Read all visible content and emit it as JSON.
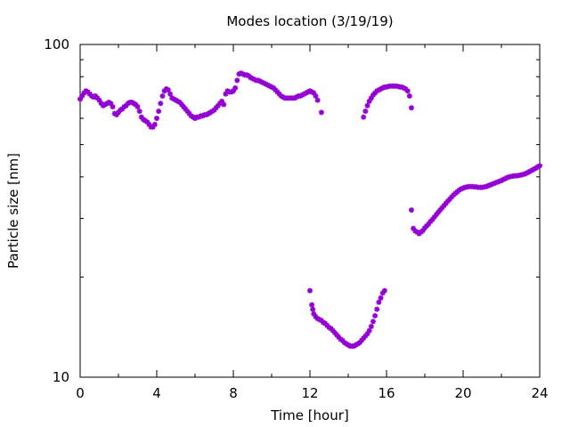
{
  "chart_data": {
    "type": "scatter",
    "title": "Modes location (3/19/19)",
    "xlabel": "Time [hour]",
    "ylabel": "Particle size [nm]",
    "xlim": [
      0,
      24
    ],
    "ylim": [
      10,
      100
    ],
    "yscale": "log",
    "grid": false,
    "x_ticks": [
      0,
      4,
      8,
      12,
      16,
      20,
      24
    ],
    "x_tick_labels": [
      "0",
      "4",
      "8",
      "12",
      "16",
      "20",
      "24"
    ],
    "y_ticks": [
      10,
      100
    ],
    "y_tick_labels": [
      "10",
      "100"
    ],
    "marker_color": "#9400D3",
    "series": [
      {
        "marker": "asterisk",
        "points": [
          [
            0.0,
            68.5
          ],
          [
            0.1,
            70.0
          ],
          [
            0.2,
            71.5
          ],
          [
            0.3,
            72.5
          ],
          [
            0.4,
            72.0
          ],
          [
            0.5,
            71.0
          ],
          [
            0.6,
            70.0
          ],
          [
            0.7,
            69.5
          ],
          [
            0.8,
            70.0
          ],
          [
            0.9,
            69.0
          ],
          [
            1.0,
            68.0
          ],
          [
            1.1,
            66.5
          ],
          [
            1.2,
            65.5
          ],
          [
            1.3,
            66.0
          ],
          [
            1.4,
            66.5
          ],
          [
            1.5,
            67.0
          ],
          [
            1.6,
            66.5
          ],
          [
            1.7,
            65.0
          ],
          [
            1.8,
            62.0
          ],
          [
            1.9,
            61.5
          ],
          [
            2.0,
            62.5
          ],
          [
            2.1,
            63.5
          ],
          [
            2.2,
            64.0
          ],
          [
            2.3,
            65.0
          ],
          [
            2.4,
            65.5
          ],
          [
            2.5,
            66.5
          ],
          [
            2.6,
            67.0
          ],
          [
            2.7,
            67.0
          ],
          [
            2.8,
            66.5
          ],
          [
            2.9,
            66.0
          ],
          [
            3.0,
            65.0
          ],
          [
            3.1,
            63.0
          ],
          [
            3.2,
            60.5
          ],
          [
            3.3,
            59.5
          ],
          [
            3.4,
            59.0
          ],
          [
            3.5,
            58.5
          ],
          [
            3.6,
            57.5
          ],
          [
            3.7,
            56.5
          ],
          [
            3.8,
            56.5
          ],
          [
            3.9,
            57.5
          ],
          [
            4.0,
            60.0
          ],
          [
            4.1,
            63.0
          ],
          [
            4.2,
            66.5
          ],
          [
            4.3,
            70.0
          ],
          [
            4.4,
            72.5
          ],
          [
            4.5,
            73.5
          ],
          [
            4.6,
            73.0
          ],
          [
            4.7,
            71.0
          ],
          [
            4.8,
            69.0
          ],
          [
            4.9,
            68.5
          ],
          [
            5.0,
            68.0
          ],
          [
            5.1,
            67.5
          ],
          [
            5.2,
            67.0
          ],
          [
            5.3,
            66.0
          ],
          [
            5.4,
            65.0
          ],
          [
            5.5,
            64.0
          ],
          [
            5.6,
            63.0
          ],
          [
            5.7,
            62.0
          ],
          [
            5.8,
            61.0
          ],
          [
            5.9,
            60.5
          ],
          [
            6.0,
            60.0
          ],
          [
            6.1,
            60.5
          ],
          [
            6.2,
            60.5
          ],
          [
            6.3,
            61.0
          ],
          [
            6.4,
            61.0
          ],
          [
            6.5,
            61.5
          ],
          [
            6.6,
            61.5
          ],
          [
            6.7,
            62.0
          ],
          [
            6.8,
            62.5
          ],
          [
            6.9,
            63.0
          ],
          [
            7.0,
            63.5
          ],
          [
            7.1,
            64.5
          ],
          [
            7.2,
            65.5
          ],
          [
            7.3,
            66.5
          ],
          [
            7.4,
            67.5
          ],
          [
            7.5,
            66.0
          ],
          [
            7.6,
            71.0
          ],
          [
            7.7,
            72.5
          ],
          [
            7.8,
            72.0
          ],
          [
            7.9,
            72.0
          ],
          [
            8.0,
            72.5
          ],
          [
            8.1,
            74.0
          ],
          [
            8.2,
            78.0
          ],
          [
            8.3,
            81.5
          ],
          [
            8.4,
            82.0
          ],
          [
            8.5,
            81.5
          ],
          [
            8.6,
            81.0
          ],
          [
            8.7,
            81.0
          ],
          [
            8.8,
            80.5
          ],
          [
            8.9,
            79.5
          ],
          [
            9.0,
            79.0
          ],
          [
            9.1,
            78.5
          ],
          [
            9.2,
            78.0
          ],
          [
            9.3,
            78.0
          ],
          [
            9.4,
            77.5
          ],
          [
            9.5,
            77.0
          ],
          [
            9.6,
            76.5
          ],
          [
            9.7,
            76.0
          ],
          [
            9.8,
            75.5
          ],
          [
            9.9,
            75.0
          ],
          [
            10.0,
            74.5
          ],
          [
            10.1,
            74.0
          ],
          [
            10.2,
            73.0
          ],
          [
            10.3,
            72.0
          ],
          [
            10.4,
            71.0
          ],
          [
            10.5,
            70.0
          ],
          [
            10.6,
            69.5
          ],
          [
            10.7,
            69.0
          ],
          [
            10.8,
            69.0
          ],
          [
            10.9,
            69.0
          ],
          [
            11.0,
            69.0
          ],
          [
            11.1,
            69.0
          ],
          [
            11.2,
            69.0
          ],
          [
            11.3,
            69.5
          ],
          [
            11.4,
            70.0
          ],
          [
            11.5,
            70.0
          ],
          [
            11.6,
            70.5
          ],
          [
            11.7,
            71.0
          ],
          [
            11.8,
            71.5
          ],
          [
            11.9,
            72.0
          ],
          [
            12.0,
            72.5
          ],
          [
            12.1,
            72.0
          ],
          [
            12.2,
            71.5
          ],
          [
            12.3,
            70.0
          ],
          [
            12.4,
            68.0
          ],
          [
            12.6,
            62.5
          ],
          [
            12.0,
            18.2
          ],
          [
            12.1,
            16.5
          ],
          [
            12.15,
            16.0
          ],
          [
            12.2,
            15.5
          ],
          [
            12.3,
            15.2
          ],
          [
            12.4,
            15.0
          ],
          [
            12.5,
            14.9
          ],
          [
            12.6,
            14.8
          ],
          [
            12.7,
            14.6
          ],
          [
            12.8,
            14.5
          ],
          [
            12.9,
            14.3
          ],
          [
            13.0,
            14.1
          ],
          [
            13.1,
            14.0
          ],
          [
            13.2,
            13.8
          ],
          [
            13.3,
            13.6
          ],
          [
            13.4,
            13.4
          ],
          [
            13.5,
            13.2
          ],
          [
            13.6,
            13.0
          ],
          [
            13.7,
            12.9
          ],
          [
            13.8,
            12.7
          ],
          [
            13.9,
            12.6
          ],
          [
            14.0,
            12.5
          ],
          [
            14.1,
            12.4
          ],
          [
            14.2,
            12.4
          ],
          [
            14.3,
            12.4
          ],
          [
            14.4,
            12.5
          ],
          [
            14.5,
            12.6
          ],
          [
            14.6,
            12.7
          ],
          [
            14.7,
            12.9
          ],
          [
            14.8,
            13.1
          ],
          [
            14.9,
            13.3
          ],
          [
            15.0,
            13.5
          ],
          [
            15.1,
            13.8
          ],
          [
            15.2,
            14.2
          ],
          [
            15.3,
            14.7
          ],
          [
            15.4,
            15.3
          ],
          [
            15.5,
            16.0
          ],
          [
            15.6,
            16.8
          ],
          [
            15.7,
            17.3
          ],
          [
            15.8,
            17.9
          ],
          [
            15.9,
            18.2
          ],
          [
            14.8,
            60.5
          ],
          [
            14.9,
            63.0
          ],
          [
            15.0,
            65.5
          ],
          [
            15.1,
            67.5
          ],
          [
            15.2,
            69.0
          ],
          [
            15.3,
            70.5
          ],
          [
            15.4,
            71.5
          ],
          [
            15.5,
            72.5
          ],
          [
            15.6,
            73.0
          ],
          [
            15.7,
            73.5
          ],
          [
            15.8,
            74.0
          ],
          [
            15.9,
            74.5
          ],
          [
            16.0,
            74.5
          ],
          [
            16.1,
            74.8
          ],
          [
            16.2,
            75.0
          ],
          [
            16.3,
            75.0
          ],
          [
            16.4,
            75.0
          ],
          [
            16.5,
            75.0
          ],
          [
            16.6,
            74.8
          ],
          [
            16.7,
            74.5
          ],
          [
            16.8,
            74.5
          ],
          [
            16.9,
            74.0
          ],
          [
            17.0,
            73.5
          ],
          [
            17.1,
            72.5
          ],
          [
            17.2,
            70.0
          ],
          [
            17.3,
            64.5
          ],
          [
            17.3,
            31.8
          ],
          [
            17.4,
            28.0
          ],
          [
            17.5,
            27.5
          ],
          [
            17.6,
            27.3
          ],
          [
            17.7,
            27.0
          ],
          [
            17.8,
            27.3
          ],
          [
            17.9,
            27.6
          ],
          [
            18.0,
            28.1
          ],
          [
            18.1,
            28.5
          ],
          [
            18.2,
            28.9
          ],
          [
            18.3,
            29.4
          ],
          [
            18.4,
            29.8
          ],
          [
            18.5,
            30.3
          ],
          [
            18.6,
            30.8
          ],
          [
            18.7,
            31.3
          ],
          [
            18.8,
            31.8
          ],
          [
            18.9,
            32.3
          ],
          [
            19.0,
            32.8
          ],
          [
            19.1,
            33.3
          ],
          [
            19.2,
            33.8
          ],
          [
            19.3,
            34.3
          ],
          [
            19.4,
            34.8
          ],
          [
            19.5,
            35.3
          ],
          [
            19.6,
            35.7
          ],
          [
            19.7,
            36.1
          ],
          [
            19.8,
            36.5
          ],
          [
            19.9,
            36.8
          ],
          [
            20.0,
            37.0
          ],
          [
            20.1,
            37.2
          ],
          [
            20.2,
            37.3
          ],
          [
            20.3,
            37.4
          ],
          [
            20.4,
            37.4
          ],
          [
            20.5,
            37.4
          ],
          [
            20.6,
            37.3
          ],
          [
            20.7,
            37.3
          ],
          [
            20.8,
            37.2
          ],
          [
            20.9,
            37.2
          ],
          [
            21.0,
            37.2
          ],
          [
            21.1,
            37.3
          ],
          [
            21.2,
            37.4
          ],
          [
            21.3,
            37.6
          ],
          [
            21.4,
            37.8
          ],
          [
            21.5,
            38.0
          ],
          [
            21.6,
            38.2
          ],
          [
            21.7,
            38.4
          ],
          [
            21.8,
            38.6
          ],
          [
            21.9,
            38.8
          ],
          [
            22.0,
            39.0
          ],
          [
            22.1,
            39.3
          ],
          [
            22.2,
            39.5
          ],
          [
            22.3,
            39.8
          ],
          [
            22.4,
            40.0
          ],
          [
            22.5,
            40.1
          ],
          [
            22.6,
            40.2
          ],
          [
            22.7,
            40.3
          ],
          [
            22.8,
            40.3
          ],
          [
            22.9,
            40.4
          ],
          [
            23.0,
            40.5
          ],
          [
            23.1,
            40.6
          ],
          [
            23.2,
            40.8
          ],
          [
            23.3,
            41.0
          ],
          [
            23.4,
            41.3
          ],
          [
            23.5,
            41.6
          ],
          [
            23.6,
            41.9
          ],
          [
            23.7,
            42.2
          ],
          [
            23.8,
            42.5
          ],
          [
            23.9,
            42.9
          ],
          [
            24.0,
            43.2
          ]
        ]
      }
    ]
  }
}
